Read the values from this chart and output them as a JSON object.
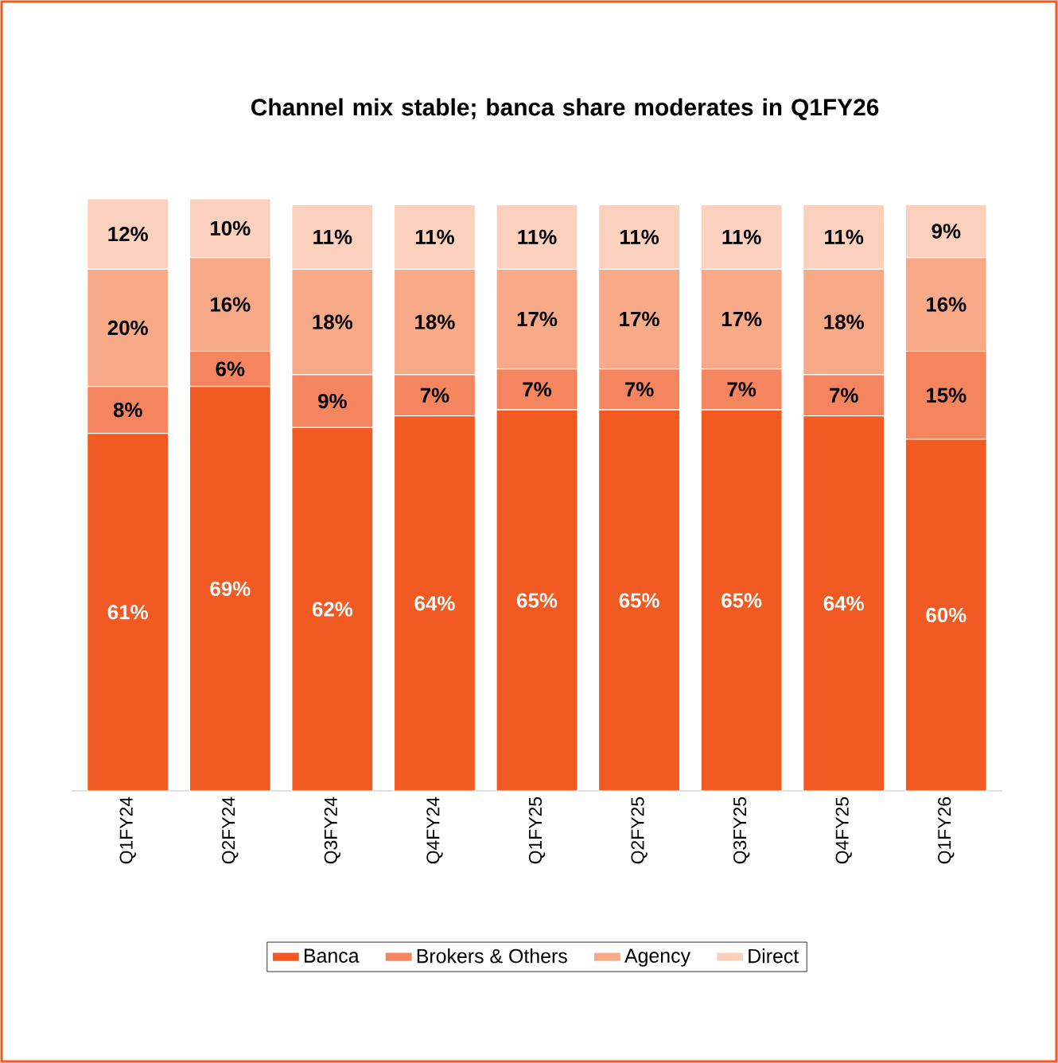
{
  "chart_data": {
    "type": "bar",
    "stacked": true,
    "title": "Channel mix stable; banca share moderates in Q1FY26",
    "categories": [
      "Q1FY24",
      "Q2FY24",
      "Q3FY24",
      "Q4FY24",
      "Q1FY25",
      "Q2FY25",
      "Q3FY25",
      "Q4FY25",
      "Q1FY26"
    ],
    "series": [
      {
        "name": "Banca",
        "color": "#f15a22",
        "values": [
          61,
          69,
          62,
          64,
          65,
          65,
          65,
          64,
          60
        ],
        "value_labels": [
          "61%",
          "69%",
          "62%",
          "64%",
          "65%",
          "65%",
          "65%",
          "64%",
          "60%"
        ]
      },
      {
        "name": "Brokers & Others",
        "color": "#f4855f",
        "values": [
          8,
          6,
          9,
          7,
          7,
          7,
          7,
          7,
          15
        ],
        "value_labels": [
          "8%",
          "6%",
          "9%",
          "7%",
          "7%",
          "7%",
          "7%",
          "7%",
          "15%"
        ]
      },
      {
        "name": "Agency",
        "color": "#f8aa88",
        "values": [
          20,
          16,
          18,
          18,
          17,
          17,
          17,
          18,
          16
        ],
        "value_labels": [
          "20%",
          "16%",
          "18%",
          "18%",
          "17%",
          "17%",
          "17%",
          "18%",
          "16%"
        ]
      },
      {
        "name": "Direct",
        "color": "#fbd0bd",
        "values": [
          12,
          10,
          11,
          11,
          11,
          11,
          11,
          11,
          9
        ],
        "value_labels": [
          "12%",
          "10%",
          "11%",
          "11%",
          "11%",
          "11%",
          "11%",
          "11%",
          "9%"
        ]
      }
    ],
    "legend": "bottom"
  }
}
